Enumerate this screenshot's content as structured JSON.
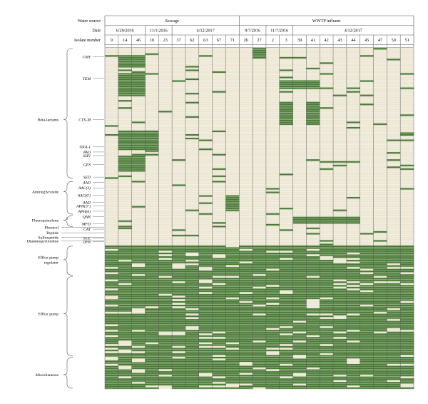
{
  "header": {
    "water_source_label": "Water source",
    "date_label": "Date",
    "isolate_label": "Isolate number",
    "sources": [
      {
        "name": "Sewage",
        "span": 10
      },
      {
        "name": "WWTP influent",
        "span": 13
      }
    ],
    "dates": [
      {
        "name": "6/29/2016",
        "span": 3
      },
      {
        "name": "11/1/2016",
        "span": 2
      },
      {
        "name": "4/12/2017",
        "span": 5
      },
      {
        "name": "9/7/2016",
        "span": 2
      },
      {
        "name": "11/7/2016",
        "span": 2
      },
      {
        "name": "4/12/2017",
        "span": 9
      }
    ],
    "isolates": [
      "9",
      "14",
      "46",
      "10",
      "23",
      "37",
      "62",
      "63",
      "67",
      "71",
      "26",
      "27",
      "2",
      "3",
      "39",
      "41",
      "42",
      "43",
      "44",
      "45",
      "47",
      "50",
      "51"
    ]
  },
  "gene_labels": [
    {
      "text": "CMY",
      "row": 5
    },
    {
      "text": "TEM",
      "row": 17
    },
    {
      "text": "CTX-M",
      "row": 40
    },
    {
      "text": "OXA-1",
      "row": 55
    },
    {
      "text": "PAO",
      "row": 58
    },
    {
      "text": "SHV",
      "row": 60
    },
    {
      "text": "GES",
      "row": 65
    },
    {
      "text": "SED",
      "row": 72
    },
    {
      "text": "AAD",
      "row": 75
    },
    {
      "text": "AAC(3)",
      "row": 78
    },
    {
      "text": "AAC(6')",
      "row": 82
    },
    {
      "text": "AAD",
      "row": 86
    },
    {
      "text": "APH(3'')",
      "row": 88
    },
    {
      "text": "APH(6)",
      "row": 91
    },
    {
      "text": "QNR",
      "row": 94
    },
    {
      "text": "MFD",
      "row": 98
    },
    {
      "text": "CAT",
      "row": 101
    },
    {
      "text": "SUL",
      "row": 106
    },
    {
      "text": "DFR",
      "row": 108
    }
  ],
  "class_labels": [
    {
      "text": "Beta-lactams",
      "row": 40,
      "brace": [
        0,
        72
      ]
    },
    {
      "text": "Aminoglycoside",
      "row": 80,
      "brace": [
        74,
        92
      ]
    },
    {
      "text": "Fluoroquinolone",
      "row": 96,
      "brace": [
        93,
        99
      ]
    },
    {
      "text": "Phenicol",
      "row": 100
    },
    {
      "text": "Peptide",
      "row": 103
    },
    {
      "text": "Sulfonamide",
      "row": 105.5
    },
    {
      "text": "Diaminopyrimidine",
      "row": 107.5
    },
    {
      "text": "Efflux pump\nregulator",
      "row": 118,
      "brace": [
        110,
        126
      ]
    },
    {
      "text": "Efflux pump",
      "row": 148,
      "brace": [
        127,
        171
      ]
    },
    {
      "text": "Miscellaneous",
      "row": 182,
      "brace": [
        172,
        189
      ]
    }
  ],
  "colors": {
    "present": "#4a7a36",
    "absent": "#ece6d2",
    "grid": "#ffffff",
    "line": "#555555"
  },
  "matrix": {
    "rows": 190,
    "patterns": [
      {
        "from": 0,
        "to": 189,
        "cols": [
          9,
          10,
          11
        ],
        "value": 0
      },
      {
        "from": 0,
        "to": 5,
        "cols": [
          11
        ],
        "value": 1
      },
      {
        "from": 4,
        "to": 10,
        "cols": [
          1,
          2
        ],
        "value": 1
      },
      {
        "from": 14,
        "to": 26,
        "cols": [
          1,
          2
        ],
        "value": 1
      },
      {
        "from": 18,
        "to": 22,
        "cols": [
          13,
          14,
          15
        ],
        "value": 1
      },
      {
        "from": 30,
        "to": 42,
        "cols": [
          13,
          15
        ],
        "value": 1
      },
      {
        "from": 46,
        "to": 56,
        "cols": [
          1,
          2,
          3
        ],
        "value": 1
      },
      {
        "from": 60,
        "to": 68,
        "cols": [
          1,
          2
        ],
        "value": 1
      },
      {
        "from": 82,
        "to": 90,
        "cols": [
          9
        ],
        "value": 1
      },
      {
        "from": 94,
        "to": 97,
        "cols": [
          14,
          15,
          16,
          17,
          18
        ],
        "value": 1
      },
      {
        "from": 110,
        "to": 189,
        "cols": [
          0,
          1,
          2,
          3,
          4,
          5,
          6,
          7,
          8,
          9,
          10,
          11,
          12,
          13,
          14,
          15,
          16,
          17,
          18,
          19,
          20,
          21,
          22
        ],
        "value": 1
      }
    ]
  }
}
